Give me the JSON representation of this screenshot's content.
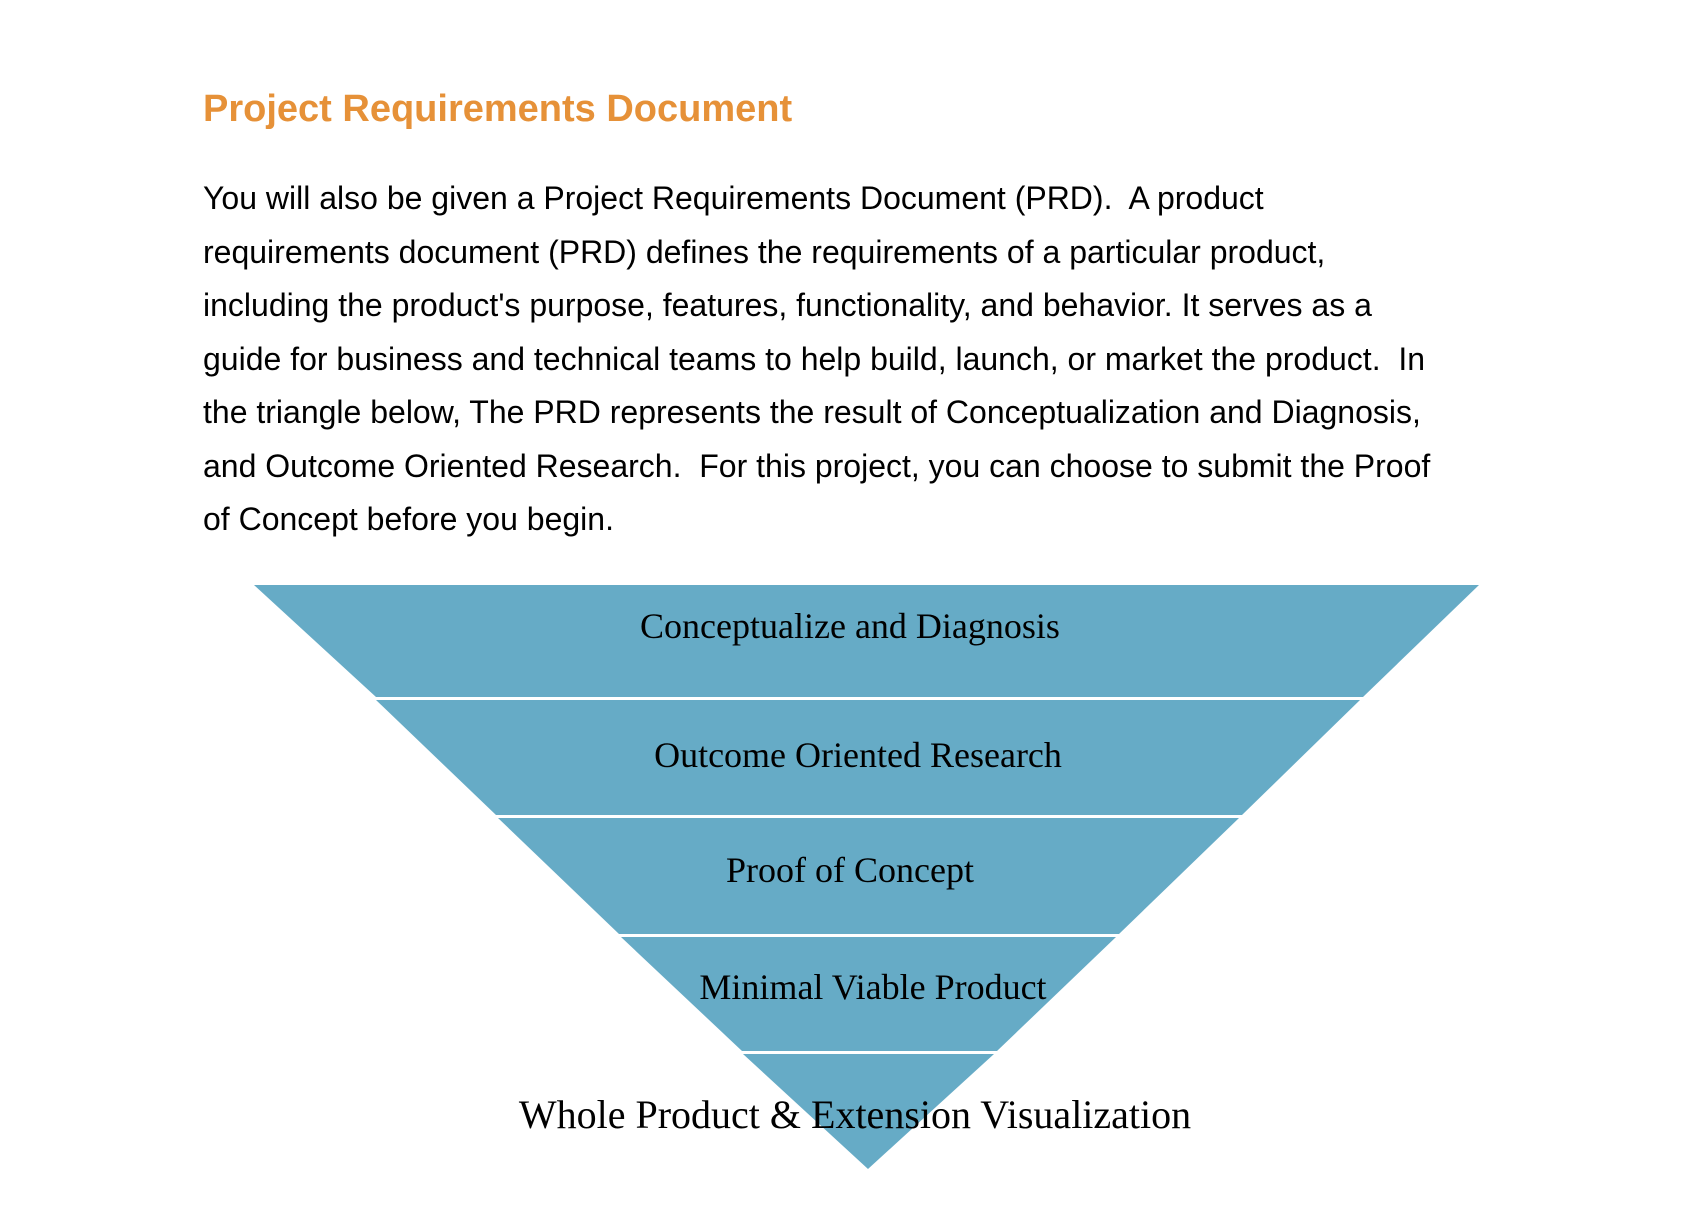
{
  "document": {
    "heading": "Project Requirements Document",
    "paragraph_lines": [
      "You will also be given a Project Requirements Document (PRD).  A product",
      "requirements document (PRD) defines the requirements of a particular product,",
      "including the product's purpose, features, functionality, and behavior. It serves as a",
      "guide for business and technical teams to help build, launch, or market the product.  In",
      "the triangle below, The PRD represents the result of Conceptualization and Diagnosis,",
      "and Outcome Oriented Research.  For this project, you can choose to submit the Proof",
      "of Concept before you begin."
    ]
  },
  "funnel": {
    "fill_color": "#66abc6",
    "divider_color": "#ffffff",
    "levels": [
      "Conceptualize and Diagnosis",
      "Outcome Oriented Research",
      "Proof of Concept",
      "Minimal Viable Product",
      "Whole Product & Extension Visualization"
    ]
  }
}
